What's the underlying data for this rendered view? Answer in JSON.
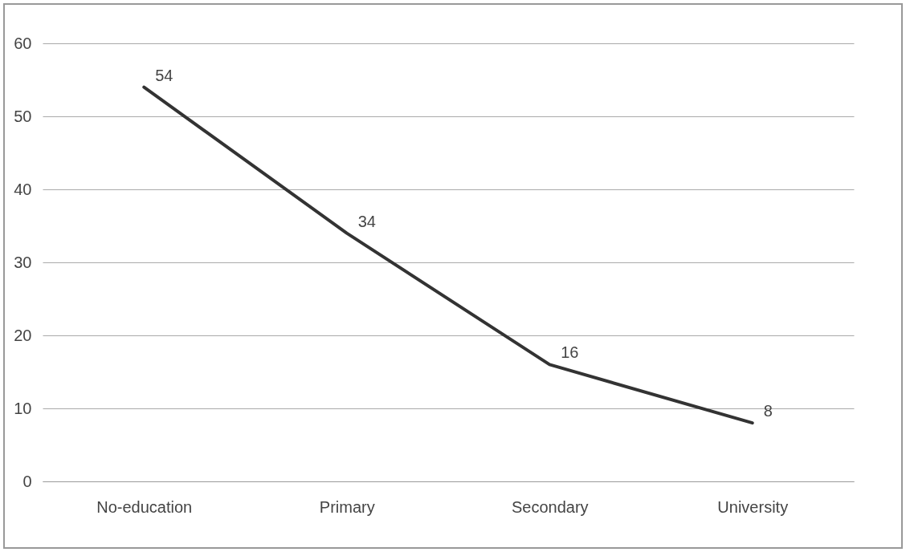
{
  "chart_data": {
    "type": "line",
    "categories": [
      "No-education",
      "Primary",
      "Secondary",
      "University"
    ],
    "values": [
      54,
      34,
      16,
      8
    ],
    "color": "#333333",
    "ylim": [
      0,
      60
    ],
    "yticks": [
      0,
      10,
      20,
      30,
      40,
      50,
      60
    ],
    "grid": "y",
    "data_labels": true,
    "line_style": "solid"
  }
}
